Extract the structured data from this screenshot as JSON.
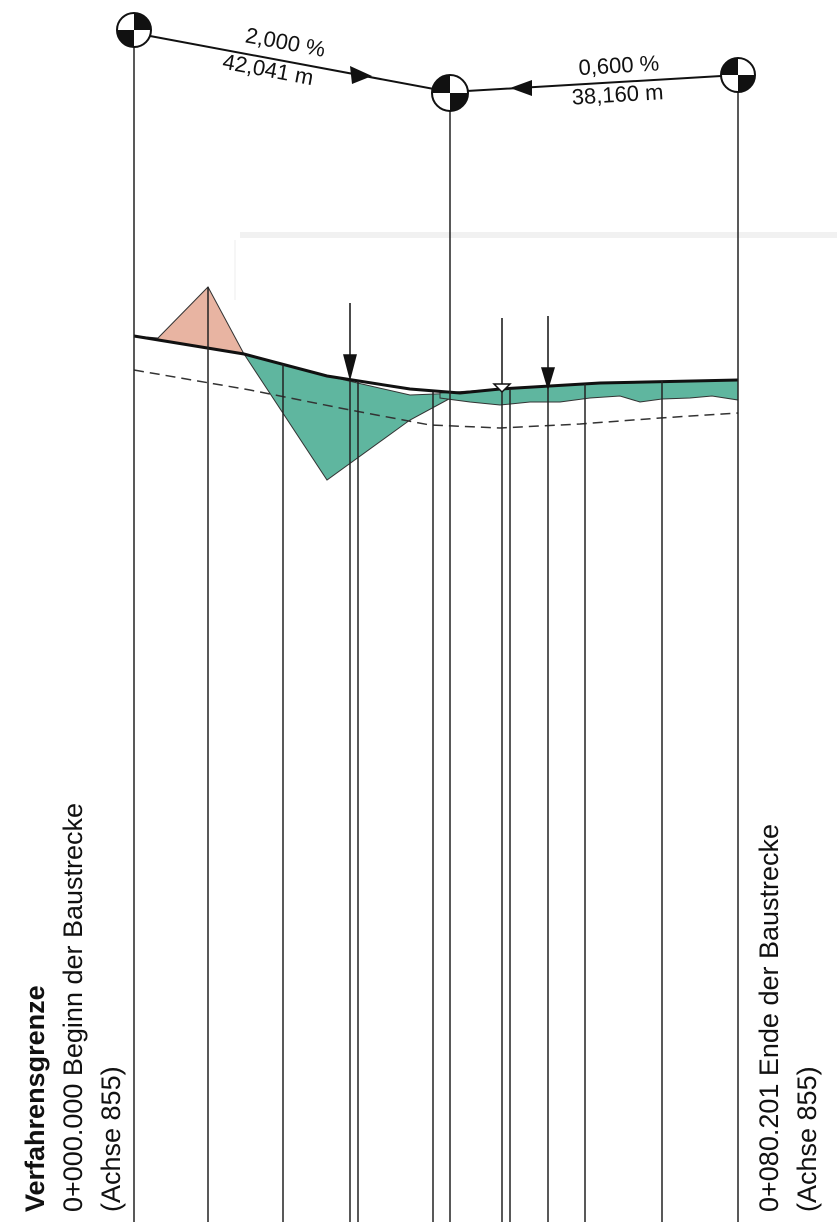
{
  "gradients": [
    {
      "percent": "2,000 %",
      "length": "42,041 m"
    },
    {
      "percent": "0,600 %",
      "length": "38,160 m"
    }
  ],
  "start_label": {
    "title": "Verfahrensgrenze",
    "station": "0+000.000 Beginn der Baustrecke",
    "axis": "(Achse 855)"
  },
  "end_label": {
    "station": "0+080.201 Ende der Baustrecke",
    "axis": "(Achse 855)"
  },
  "colors": {
    "fill_area": "#e8b4a2",
    "cut_area": "#5fb69f",
    "line": "#111111",
    "paper": "#ffffff"
  }
}
